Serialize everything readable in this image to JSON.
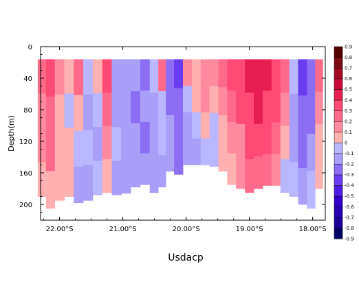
{
  "chart_data": {
    "type": "heatmap",
    "title": "Usdacp",
    "ylabel": "Depth(m)",
    "xlabel": "",
    "x_axis": {
      "ticks": [
        {
          "value": -22.0,
          "label": "22.00°S"
        },
        {
          "value": -21.0,
          "label": "21.00°S"
        },
        {
          "value": -20.0,
          "label": "20.00°S"
        },
        {
          "value": -19.0,
          "label": "19.00°S"
        },
        {
          "value": -18.0,
          "label": "18.00°S"
        }
      ],
      "range": [
        -22.3,
        -17.8
      ]
    },
    "y_axis": {
      "ticks": [
        {
          "value": 0,
          "label": "0"
        },
        {
          "value": 40,
          "label": "40"
        },
        {
          "value": 80,
          "label": "80"
        },
        {
          "value": 120,
          "label": "120"
        },
        {
          "value": 160,
          "label": "160"
        },
        {
          "value": 200,
          "label": "200"
        }
      ],
      "range": [
        0,
        220
      ],
      "inverted": true
    },
    "colorbar": {
      "min": -0.9,
      "max": 0.9,
      "step": 0.1,
      "labels": [
        "-0.9",
        "-0.8",
        "-0.7",
        "-0.6",
        "-0.5",
        "-0.4",
        "-0.3",
        "-0.2",
        "-0.1",
        "0",
        "0.1",
        "0.2",
        "0.3",
        "0.4",
        "0.5",
        "0.6",
        "0.7",
        "0.8",
        "0.9"
      ]
    },
    "data_top_depth": 16,
    "columns": [
      {
        "lat": -22.28,
        "bottom": 190,
        "profile": [
          0.25,
          0.15,
          0.1,
          0.05
        ]
      },
      {
        "lat": -22.15,
        "bottom": 205,
        "profile": [
          0.3,
          0.25,
          0.2,
          0.05
        ]
      },
      {
        "lat": -22.0,
        "bottom": 195,
        "profile": [
          0.1,
          0.05,
          0.0,
          0.05
        ]
      },
      {
        "lat": -21.85,
        "bottom": 190,
        "profile": [
          0.05,
          -0.05,
          0.0,
          0.0
        ]
      },
      {
        "lat": -21.7,
        "bottom": 198,
        "profile": [
          0.2,
          0.0,
          -0.1,
          -0.15
        ]
      },
      {
        "lat": -21.55,
        "bottom": 195,
        "profile": [
          -0.1,
          -0.15,
          -0.1,
          -0.15
        ]
      },
      {
        "lat": -21.4,
        "bottom": 188,
        "profile": [
          0.05,
          -0.1,
          -0.15,
          -0.1
        ]
      },
      {
        "lat": -21.25,
        "bottom": 185,
        "profile": [
          0.3,
          0.2,
          0.1,
          0.05
        ]
      },
      {
        "lat": -21.1,
        "bottom": 188,
        "profile": [
          -0.2,
          -0.2,
          -0.1,
          -0.15
        ]
      },
      {
        "lat": -20.95,
        "bottom": 186,
        "profile": [
          -0.15,
          -0.2,
          -0.2,
          -0.15
        ]
      },
      {
        "lat": -20.8,
        "bottom": 178,
        "profile": [
          -0.2,
          -0.25,
          -0.2,
          -0.15
        ]
      },
      {
        "lat": -20.65,
        "bottom": 175,
        "profile": [
          -0.25,
          -0.2,
          -0.25,
          -0.2
        ]
      },
      {
        "lat": -20.5,
        "bottom": 185,
        "profile": [
          -0.1,
          -0.15,
          -0.2,
          -0.15
        ]
      },
      {
        "lat": -20.38,
        "bottom": 178,
        "profile": [
          0.2,
          -0.05,
          -0.1,
          -0.2
        ]
      },
      {
        "lat": -20.26,
        "bottom": 158,
        "profile": [
          -0.3,
          -0.25,
          -0.2,
          -0.2
        ]
      },
      {
        "lat": -20.12,
        "bottom": 162,
        "profile": [
          -0.35,
          -0.3,
          -0.25,
          -0.25
        ]
      },
      {
        "lat": -19.98,
        "bottom": 150,
        "profile": [
          0.1,
          -0.1,
          -0.15,
          -0.2
        ]
      },
      {
        "lat": -19.84,
        "bottom": 150,
        "profile": [
          0.05,
          0.0,
          -0.1,
          -0.15
        ]
      },
      {
        "lat": -19.7,
        "bottom": 150,
        "profile": [
          0.15,
          0.1,
          0.0,
          -0.1
        ]
      },
      {
        "lat": -19.56,
        "bottom": 152,
        "profile": [
          0.1,
          0.0,
          -0.1,
          -0.1
        ]
      },
      {
        "lat": -19.42,
        "bottom": 158,
        "profile": [
          0.25,
          0.1,
          0.0,
          0.05
        ]
      },
      {
        "lat": -19.28,
        "bottom": 175,
        "profile": [
          0.3,
          0.25,
          0.1,
          0.05
        ]
      },
      {
        "lat": -19.14,
        "bottom": 180,
        "profile": [
          0.35,
          0.3,
          0.15,
          0.1
        ]
      },
      {
        "lat": -19.0,
        "bottom": 185,
        "profile": [
          0.4,
          0.35,
          0.3,
          0.2
        ]
      },
      {
        "lat": -18.86,
        "bottom": 180,
        "profile": [
          0.45,
          0.4,
          0.3,
          0.2
        ]
      },
      {
        "lat": -18.72,
        "bottom": 176,
        "profile": [
          0.4,
          0.35,
          0.3,
          0.2
        ]
      },
      {
        "lat": -18.58,
        "bottom": 176,
        "profile": [
          0.3,
          0.35,
          0.25,
          0.15
        ]
      },
      {
        "lat": -18.44,
        "bottom": 185,
        "profile": [
          0.2,
          0.1,
          0.0,
          -0.05
        ]
      },
      {
        "lat": -18.3,
        "bottom": 190,
        "profile": [
          -0.1,
          -0.15,
          -0.15,
          -0.1
        ]
      },
      {
        "lat": -18.16,
        "bottom": 200,
        "profile": [
          -0.35,
          -0.3,
          -0.25,
          -0.2
        ]
      },
      {
        "lat": -18.02,
        "bottom": 205,
        "profile": [
          -0.25,
          -0.3,
          -0.15,
          -0.1
        ]
      },
      {
        "lat": -17.9,
        "bottom": 180,
        "profile": [
          0.25,
          0.1,
          0.05,
          0.0
        ]
      }
    ]
  }
}
